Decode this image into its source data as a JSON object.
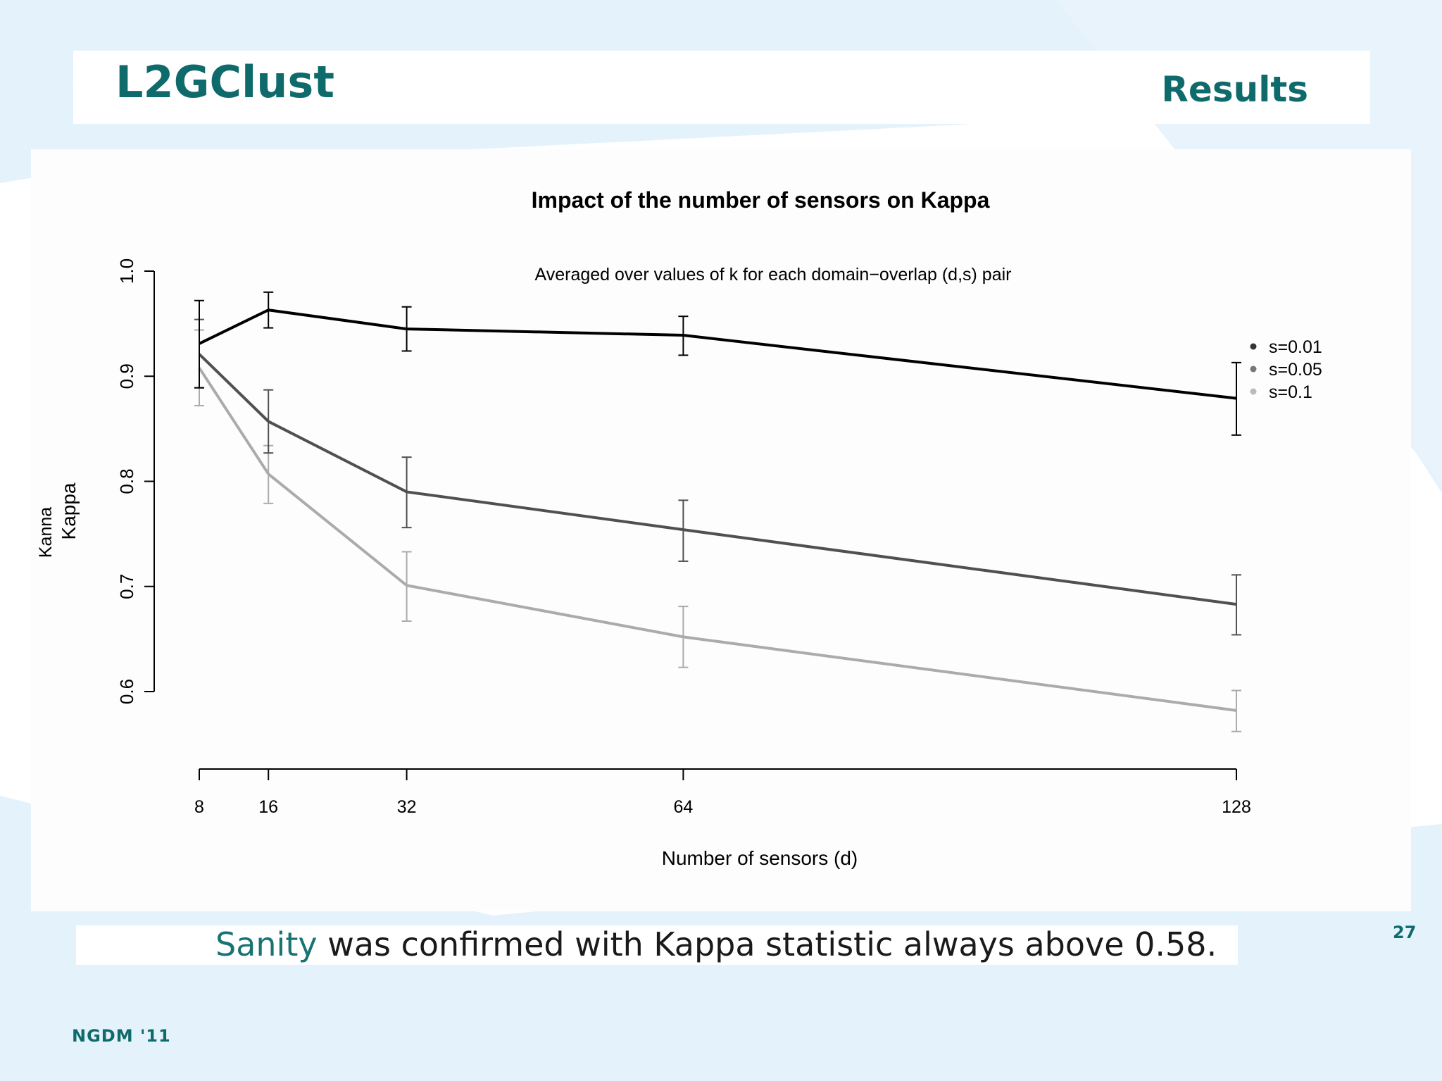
{
  "slide": {
    "title": "L2GClust",
    "section": "Results",
    "caption_accent": "Sanity",
    "caption_rest": " was confirmed with Kappa statistic always above 0.58.",
    "page_number": "27",
    "footer": "NGDM '11"
  },
  "colors": {
    "brand": "#0f6b6b",
    "background_shape": "#e4f2fb"
  },
  "chart_data": {
    "type": "line",
    "title": "Impact of the number of sensors on Kappa",
    "subtitle": "Averaged over values of k for each domain−overlap (d,s) pair",
    "xlabel": "Number of sensors (d)",
    "ylabel": "Kappa",
    "ylabel_ghost": "Kanna",
    "x": [
      8,
      16,
      32,
      64,
      128
    ],
    "x_ticks": [
      "8",
      "16",
      "32",
      "64",
      "128"
    ],
    "y_ticks": [
      "0.6",
      "0.7",
      "0.8",
      "0.9",
      "1.0"
    ],
    "ylim": [
      0.6,
      1.0
    ],
    "xlim": [
      8,
      128
    ],
    "grid": false,
    "legend_position": "right",
    "series": [
      {
        "name": "s=0.01",
        "color": "#000000",
        "legend_color": "#333333",
        "values": [
          0.931,
          0.963,
          0.945,
          0.939,
          0.879
        ],
        "err_low": [
          0.889,
          0.946,
          0.924,
          0.92,
          0.844
        ],
        "err_high": [
          0.972,
          0.98,
          0.966,
          0.957,
          0.913
        ]
      },
      {
        "name": "s=0.05",
        "color": "#505050",
        "legend_color": "#777777",
        "values": [
          0.921,
          0.857,
          0.79,
          0.754,
          0.683
        ],
        "err_low": [
          0.889,
          0.827,
          0.756,
          0.724,
          0.654
        ],
        "err_high": [
          0.954,
          0.887,
          0.823,
          0.782,
          0.711
        ]
      },
      {
        "name": "s=0.1",
        "color": "#ababab",
        "legend_color": "#bbbbbb",
        "values": [
          0.908,
          0.807,
          0.701,
          0.652,
          0.582
        ],
        "err_low": [
          0.872,
          0.779,
          0.667,
          0.623,
          0.562
        ],
        "err_high": [
          0.944,
          0.834,
          0.733,
          0.681,
          0.601
        ]
      }
    ]
  }
}
